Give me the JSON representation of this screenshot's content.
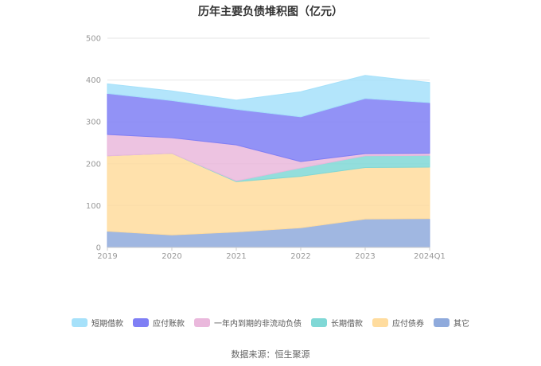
{
  "title": "历年主要负债堆积图（亿元）",
  "source": "数据来源：恒生聚源",
  "chart_data": {
    "type": "area",
    "stacked": true,
    "title": "历年主要负债堆积图（亿元）",
    "categories": [
      "2019",
      "2020",
      "2021",
      "2022",
      "2023",
      "2024Q1"
    ],
    "ylim": [
      0,
      500
    ],
    "yticks": [
      0,
      100,
      200,
      300,
      400,
      500
    ],
    "grid": true,
    "legend_position": "bottom",
    "series": [
      {
        "name": "其它",
        "color": "#8faadc",
        "values": [
          39,
          30,
          37,
          47,
          68,
          69
        ]
      },
      {
        "name": "应付债券",
        "color": "#ffdc9e",
        "values": [
          180,
          195,
          120,
          123,
          123,
          123
        ]
      },
      {
        "name": "长期借款",
        "color": "#80d8d6",
        "values": [
          0,
          0,
          2,
          20,
          28,
          28
        ]
      },
      {
        "name": "一年内到期的非流动负债",
        "color": "#eab8dc",
        "values": [
          51,
          37,
          86,
          15,
          5,
          5
        ]
      },
      {
        "name": "应付账款",
        "color": "#7f7ff5",
        "values": [
          98,
          89,
          85,
          107,
          132,
          121
        ]
      },
      {
        "name": "短期借款",
        "color": "#a6e1fa",
        "values": [
          23,
          23,
          22,
          60,
          55,
          48
        ]
      }
    ],
    "legend_order": [
      "短期借款",
      "应付账款",
      "一年内到期的非流动负债",
      "长期借款",
      "应付债券",
      "其它"
    ]
  }
}
